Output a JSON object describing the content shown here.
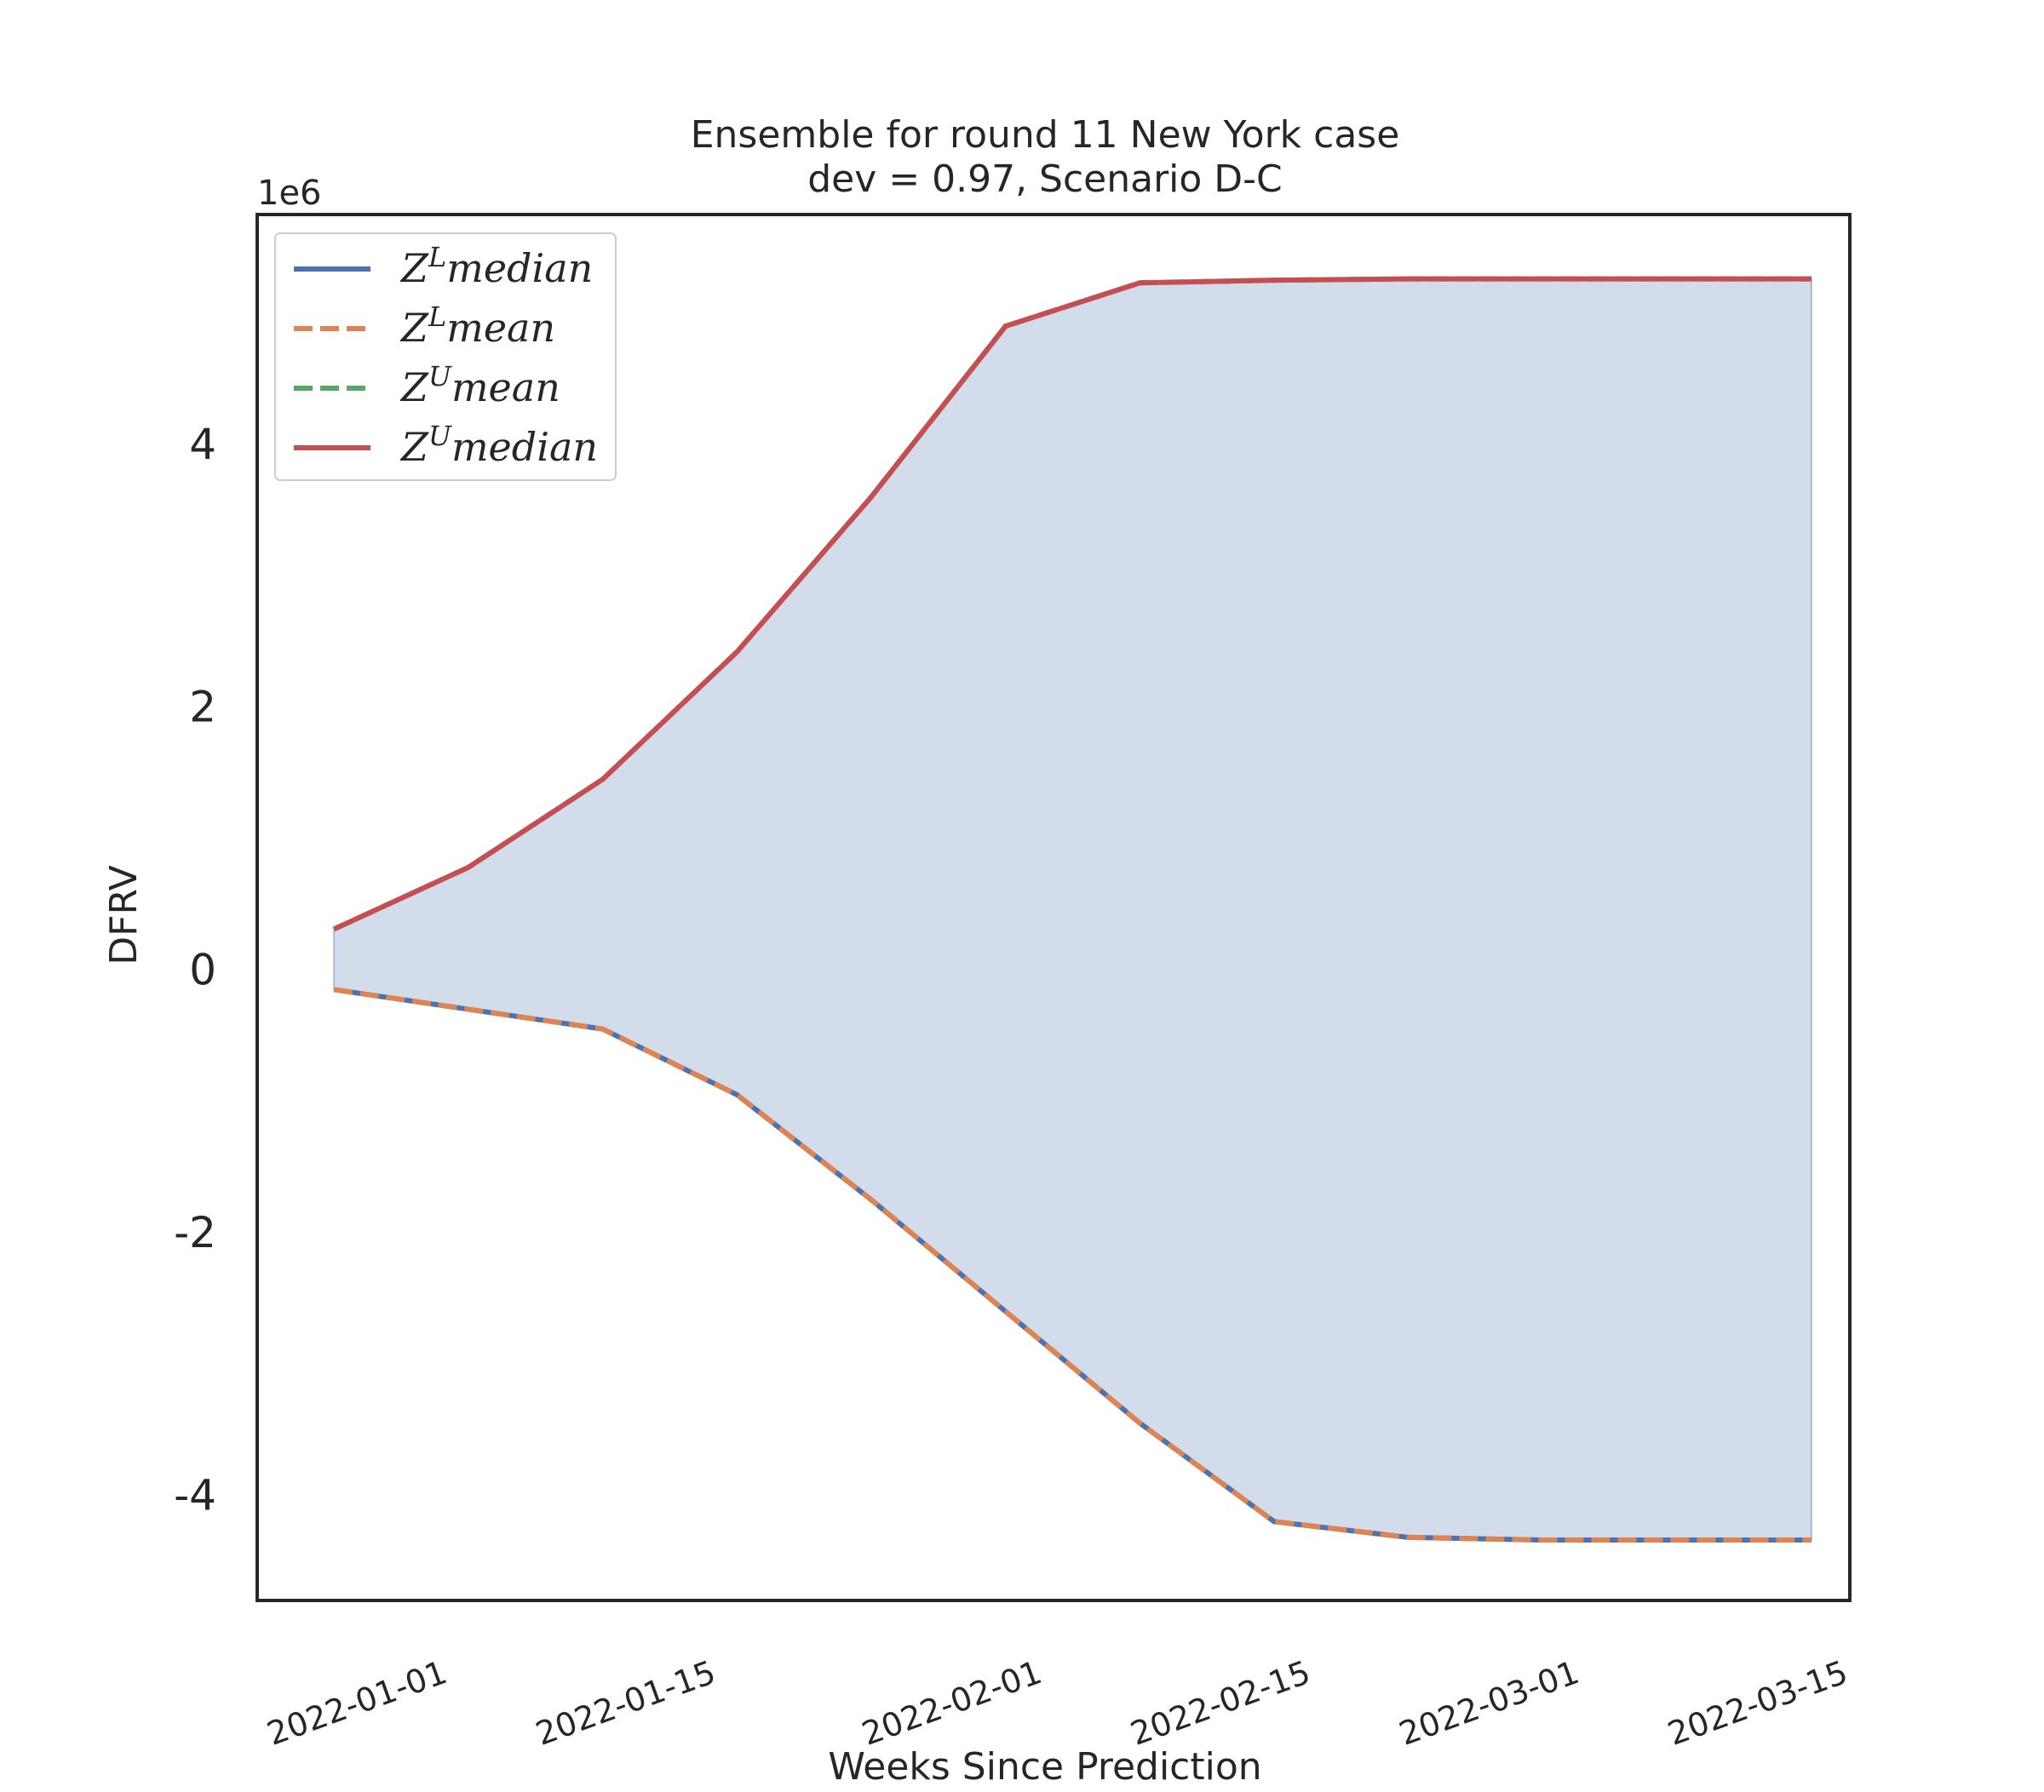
{
  "chart_data": {
    "type": "line",
    "title": "Ensemble for round 11 New York case",
    "subtitle": "dev = 0.97, Scenario D-C",
    "xlabel": "Weeks Since Prediction",
    "ylabel": "DFRV",
    "y_offset_label": "1e6",
    "x_ticks": [
      "2022-01-01",
      "2022-01-15",
      "2022-02-01",
      "2022-02-15",
      "2022-03-01",
      "2022-03-15"
    ],
    "y_ticks": [
      "-4",
      "-2",
      "0",
      "2",
      "4"
    ],
    "y_tick_values": [
      -4000000,
      -2000000,
      0,
      2000000,
      4000000
    ],
    "ylim": [
      -4800000,
      5750000
    ],
    "xlim": [
      "2021-12-22",
      "2022-03-15"
    ],
    "x": [
      "2021-12-26",
      "2022-01-02",
      "2022-01-09",
      "2022-01-16",
      "2022-01-23",
      "2022-01-30",
      "2022-02-06",
      "2022-02-13",
      "2022-02-20",
      "2022-02-27",
      "2022-03-06",
      "2022-03-13"
    ],
    "series": [
      {
        "name": "median",
        "legend_sup": "L",
        "style": "solid",
        "color": "#4c72b0",
        "values": [
          -150000,
          -300000,
          -450000,
          -950000,
          -1750000,
          -2600000,
          -3450000,
          -4200000,
          -4320000,
          -4340000,
          -4340000,
          -4340000
        ]
      },
      {
        "name": "mean",
        "legend_sup": "L",
        "style": "dashed",
        "color": "#dd8452",
        "values": [
          -150000,
          -300000,
          -450000,
          -950000,
          -1750000,
          -2600000,
          -3450000,
          -4200000,
          -4320000,
          -4340000,
          -4340000,
          -4340000
        ]
      },
      {
        "name": "mean",
        "legend_sup": "U",
        "style": "dashed",
        "color": "#55a868",
        "values": [
          310000,
          780000,
          1450000,
          2420000,
          3600000,
          4900000,
          5230000,
          5250000,
          5260000,
          5260000,
          5260000,
          5260000
        ]
      },
      {
        "name": "median",
        "legend_sup": "U",
        "style": "solid",
        "color": "#c44e52",
        "values": [
          310000,
          780000,
          1450000,
          2420000,
          3600000,
          4900000,
          5230000,
          5250000,
          5260000,
          5260000,
          5260000,
          5260000
        ]
      }
    ],
    "fill_between": {
      "color": "#4c72b0",
      "opacity": 0.25
    },
    "legend": "upper left",
    "grid": false
  }
}
